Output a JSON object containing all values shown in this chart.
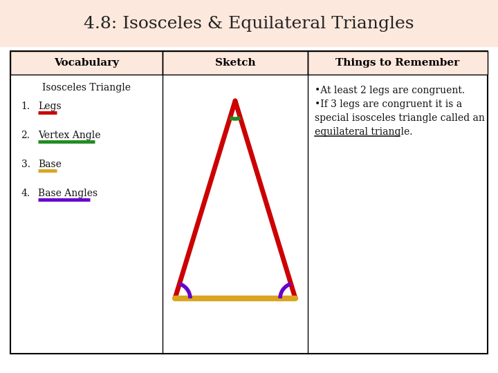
{
  "title": "4.8: Isosceles & Equilateral Triangles",
  "title_bg": "#fce8dc",
  "header_bg": "#fce8dc",
  "table_bg": "#ffffff",
  "col_headers": [
    "Vocabulary",
    "Sketch",
    "Things to Remember"
  ],
  "vocab_title": "Isosceles Triangle",
  "vocab_items": [
    "Legs",
    "Vertex Angle",
    "Base",
    "Base Angles"
  ],
  "underline_colors": [
    "#cc0000",
    "#228b22",
    "#daa520",
    "#6600cc"
  ],
  "triangle_color": "#cc0000",
  "base_color": "#daa520",
  "arc_vertex_color": "#228b22",
  "arc_base_color": "#6600cc",
  "title_fontsize": 18,
  "header_fontsize": 11,
  "body_fontsize": 10,
  "things_fontsize": 10
}
